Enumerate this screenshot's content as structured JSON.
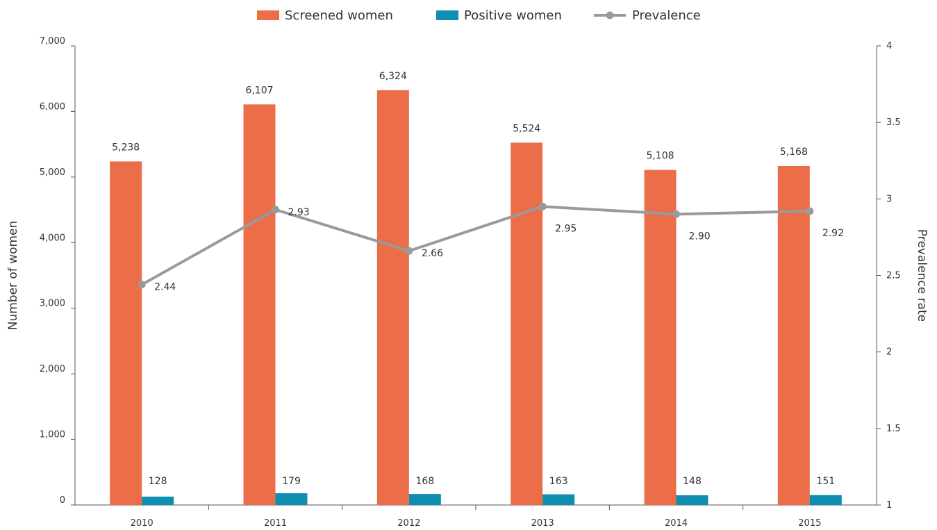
{
  "chart_data": {
    "type": "bar",
    "categories": [
      "2010",
      "2011",
      "2012",
      "2013",
      "2014",
      "2015"
    ],
    "series": [
      {
        "name": "Screened women",
        "type": "bar",
        "axis": "left",
        "color": "#EB6E48",
        "values": [
          5238,
          6107,
          6324,
          5524,
          5108,
          5168
        ],
        "labels": [
          "5,238",
          "6,107",
          "6,324",
          "5,524",
          "5,108",
          "5,168"
        ]
      },
      {
        "name": "Positive women",
        "type": "bar",
        "axis": "left",
        "color": "#0E8FB1",
        "values": [
          128,
          179,
          168,
          163,
          148,
          151
        ],
        "labels": [
          "128",
          "179",
          "168",
          "163",
          "148",
          "151"
        ]
      },
      {
        "name": "Prevalence",
        "type": "line",
        "axis": "right",
        "color": "#9A9A9A",
        "values": [
          2.44,
          2.93,
          2.66,
          2.95,
          2.9,
          2.92
        ],
        "labels": [
          "2.44",
          "2.93",
          "2.66",
          "2.95",
          "2.90",
          "2.92"
        ]
      }
    ],
    "ylabel": "Number of women",
    "y2label": "Prevalence rate",
    "ylim": [
      0,
      7000
    ],
    "y2lim": [
      1,
      4
    ],
    "yticks": [
      "0",
      "1,000",
      "2,000",
      "3,000",
      "4,000",
      "5,000",
      "6,000",
      "7,000"
    ],
    "y2ticks": [
      "1",
      "1.5",
      "2",
      "2.5",
      "3",
      "3.5",
      "4"
    ],
    "legend_position": "top-center",
    "grid": false
  }
}
